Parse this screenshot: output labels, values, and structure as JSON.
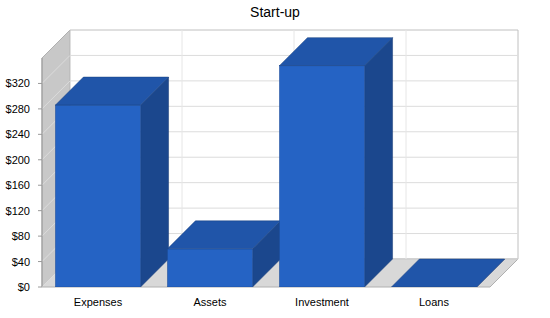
{
  "chart_data": {
    "type": "bar",
    "title": "Start-up",
    "categories": [
      "Expenses",
      "Assets",
      "Investment",
      "Loans"
    ],
    "values": [
      286,
      60,
      348,
      0
    ],
    "color": "#2563c4",
    "ylim": [
      0,
      360
    ],
    "yticks": [
      {
        "value": 0,
        "label": "$0"
      },
      {
        "value": 40,
        "label": "$40"
      },
      {
        "value": 80,
        "label": "$80"
      },
      {
        "value": 120,
        "label": "$120"
      },
      {
        "value": 160,
        "label": "$160"
      },
      {
        "value": 200,
        "label": "$200"
      },
      {
        "value": 240,
        "label": "$240"
      },
      {
        "value": 280,
        "label": "$280"
      },
      {
        "value": 320,
        "label": "$320"
      }
    ],
    "grid": true
  }
}
